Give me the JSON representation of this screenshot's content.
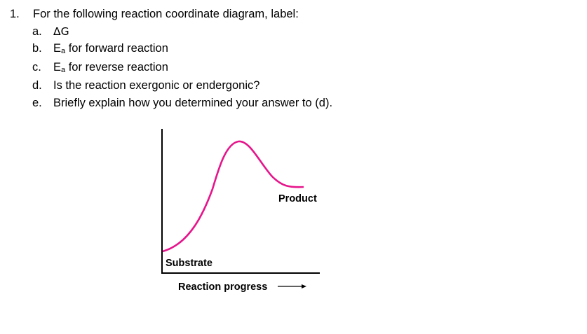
{
  "question": {
    "number": "1.",
    "prompt": "For the following reaction coordinate diagram, label:",
    "items": [
      {
        "letter": "a.",
        "text": "ΔG"
      },
      {
        "letter": "b.",
        "text_main": "E",
        "text_sub": "a",
        "text_rest": " for forward reaction"
      },
      {
        "letter": "c.",
        "text_main": "E",
        "text_sub": "a",
        "text_rest": " for reverse reaction"
      },
      {
        "letter": "d.",
        "text": "Is the reaction exergonic or endergonic?"
      },
      {
        "letter": "e.",
        "text": "Briefly explain how you determined your answer to (d)."
      }
    ]
  },
  "diagram": {
    "product_label": "Product",
    "substrate_label": "Substrate",
    "x_axis_label": "Reaction progress",
    "curve_color": "#e6158c",
    "axis_color": "#000000"
  }
}
